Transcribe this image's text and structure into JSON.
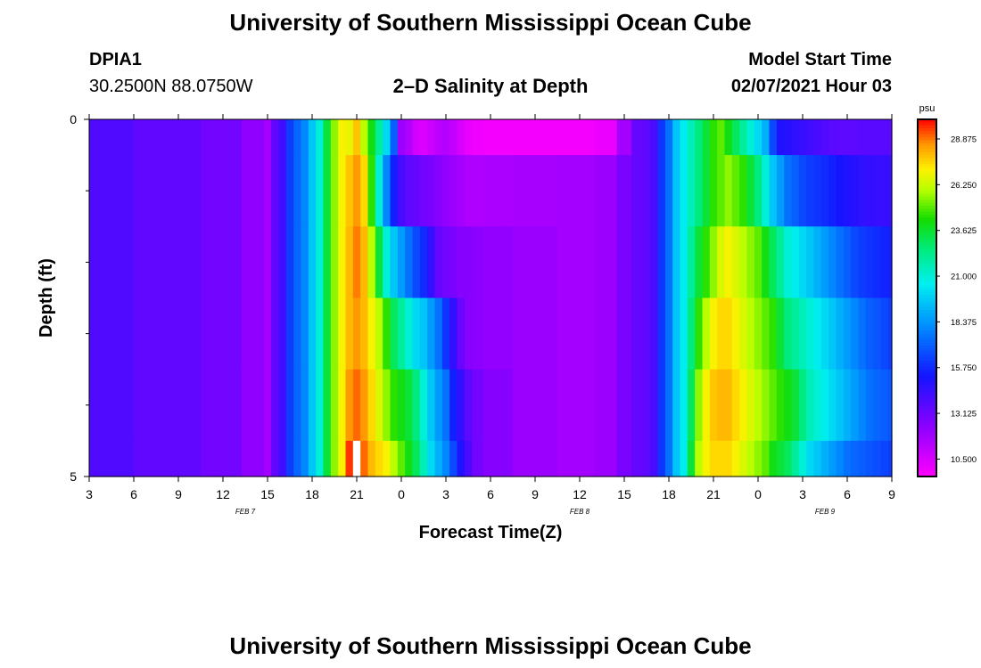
{
  "page": {
    "title_top": "University of Southern Mississippi Ocean Cube",
    "title_bottom": "University of Southern Mississippi Ocean Cube",
    "station_id": "DPIA1",
    "station_coords": "30.2500N 88.0750W",
    "plot_title": "2–D Salinity at Depth",
    "model_start_label": "Model Start Time",
    "model_start_value": "02/07/2021 Hour 03"
  },
  "colors": {
    "scale_low": "#ff00ff",
    "scale_high": "#ff0000",
    "missing_cell": "#ffffff"
  },
  "chart_data": {
    "type": "heatmap",
    "title": "2–D Salinity at Depth",
    "xlabel": "Forecast Time(Z)",
    "ylabel": "Depth (ft)",
    "x_tick_labels": [
      "3",
      "6",
      "9",
      "12",
      "15",
      "18",
      "21",
      "0",
      "3",
      "6",
      "9",
      "12",
      "15",
      "18",
      "21",
      "0",
      "3",
      "6",
      "9"
    ],
    "x_range_hours": [
      3,
      57
    ],
    "y_tick_labels": [
      "0",
      "5"
    ],
    "y_range_ft": [
      0,
      5
    ],
    "y_minor_ticks": [
      1,
      2,
      3,
      4
    ],
    "date_labels": [
      {
        "text": "FEB  7",
        "hour": 13.5
      },
      {
        "text": "FEB  8",
        "hour": 36
      },
      {
        "text": "FEB  9",
        "hour": 52.5
      }
    ],
    "colorbar": {
      "unit": "psu",
      "min": 9.5,
      "max": 30,
      "tick_labels": [
        "28.875",
        "26.250",
        "23.625",
        "21.000",
        "18.375",
        "15.750",
        "13.125",
        "10.500"
      ]
    },
    "depth_bands_ft": [
      [
        0,
        0.5
      ],
      [
        0.5,
        1.5
      ],
      [
        1.5,
        2.5
      ],
      [
        2.5,
        3.5
      ],
      [
        3.5,
        4.5
      ],
      [
        4.5,
        5
      ]
    ],
    "hours": [
      3,
      9,
      12,
      14.5,
      15,
      15.5,
      16,
      16.5,
      17,
      17.5,
      18,
      18.5,
      19,
      19.5,
      20,
      20.5,
      21,
      21.5,
      22,
      22.5,
      23,
      23.5,
      24,
      24.5,
      25,
      25.5,
      26,
      26.5,
      27,
      27.5,
      28,
      28.5,
      29,
      30,
      33,
      36,
      38,
      39,
      40,
      40.5,
      41,
      41.5,
      42,
      42.5,
      43,
      43.5,
      44,
      44.5,
      45,
      45.5,
      46,
      46.5,
      47,
      47.5,
      48,
      48.5,
      49,
      49.5,
      50,
      50.5,
      51,
      51.5,
      52,
      52.5,
      53,
      53.5,
      54,
      54.5,
      55,
      55.5,
      56,
      56.5,
      57
    ],
    "salinity_psu": [
      [
        13.8,
        13.4,
        13.0,
        12.3,
        11.8,
        13.4,
        14.2,
        16.2,
        17.2,
        18.0,
        19.5,
        21.0,
        23.5,
        25.5,
        27.0,
        26.8,
        27.8,
        26.0,
        24.0,
        22.0,
        20.0,
        17.0,
        12.0,
        11.5,
        10.6,
        10.4,
        10.8,
        11.2,
        11.4,
        11.0,
        10.5,
        10.0,
        9.9,
        9.8,
        9.8,
        9.8,
        10.0,
        11.8,
        13.3,
        13.5,
        14.0,
        16.0,
        17.5,
        19.5,
        20.5,
        21.5,
        22.5,
        23.5,
        24.5,
        25.0,
        24.0,
        23.0,
        22.0,
        21.0,
        20.0,
        19.0,
        16.5,
        15.0,
        14.8,
        14.6,
        14.4,
        14.2,
        14.0,
        13.8,
        13.6,
        13.5,
        13.5,
        13.5,
        13.6,
        13.6,
        13.6,
        13.6,
        13.6
      ],
      [
        13.8,
        13.4,
        13.0,
        12.3,
        11.8,
        13.4,
        14.2,
        16.2,
        17.2,
        18.0,
        19.5,
        21.0,
        23.5,
        25.5,
        27.0,
        27.8,
        28.5,
        27.5,
        24.5,
        21.0,
        18.0,
        15.5,
        14.0,
        13.5,
        13.3,
        13.0,
        12.8,
        12.5,
        12.2,
        12.0,
        11.8,
        11.5,
        11.5,
        11.6,
        11.7,
        11.8,
        12.0,
        12.8,
        13.3,
        13.5,
        14.0,
        16.0,
        17.5,
        19.5,
        20.5,
        21.5,
        22.5,
        23.5,
        24.5,
        25.0,
        25.5,
        25.0,
        24.5,
        23.5,
        22.5,
        21.0,
        19.5,
        18.5,
        17.5,
        17.0,
        16.5,
        16.2,
        16.0,
        15.8,
        15.5,
        15.2,
        15.0,
        14.8,
        14.6,
        14.5,
        14.4,
        14.4,
        14.4
      ],
      [
        13.8,
        13.4,
        13.0,
        12.3,
        11.8,
        13.4,
        14.2,
        16.2,
        17.2,
        18.0,
        19.5,
        21.0,
        23.5,
        25.5,
        27.0,
        28.0,
        28.8,
        28.0,
        26.0,
        23.5,
        21.0,
        19.5,
        18.5,
        17.5,
        16.5,
        15.8,
        14.5,
        13.3,
        13.0,
        12.8,
        12.5,
        12.5,
        12.4,
        12.2,
        12.0,
        11.8,
        12.0,
        12.8,
        13.3,
        13.5,
        14.0,
        16.0,
        17.5,
        19.5,
        20.5,
        22.0,
        23.5,
        24.5,
        25.5,
        26.5,
        27.0,
        26.5,
        26.0,
        25.5,
        25.0,
        24.0,
        23.0,
        22.0,
        21.0,
        20.5,
        20.0,
        19.5,
        19.0,
        18.5,
        18.0,
        17.5,
        17.0,
        16.5,
        16.2,
        16.0,
        15.8,
        15.6,
        15.5
      ],
      [
        13.8,
        13.4,
        13.0,
        12.3,
        11.8,
        13.4,
        14.2,
        16.2,
        17.2,
        18.0,
        19.5,
        21.0,
        23.5,
        25.5,
        27.0,
        28.0,
        28.5,
        28.0,
        27.0,
        26.0,
        24.5,
        23.0,
        22.0,
        21.0,
        20.0,
        19.5,
        18.5,
        17.5,
        16.0,
        14.5,
        13.2,
        12.5,
        12.4,
        12.2,
        12.0,
        11.8,
        12.0,
        12.8,
        13.3,
        13.5,
        14.0,
        16.0,
        17.5,
        19.5,
        20.5,
        22.5,
        24.5,
        26.0,
        27.0,
        27.5,
        27.5,
        27.0,
        26.5,
        26.0,
        25.5,
        25.0,
        24.5,
        23.5,
        22.5,
        22.0,
        21.5,
        21.0,
        20.5,
        20.0,
        19.5,
        19.0,
        18.5,
        18.0,
        17.5,
        17.0,
        16.8,
        16.5,
        16.2
      ],
      [
        13.8,
        13.4,
        13.0,
        12.3,
        11.8,
        13.4,
        14.2,
        16.2,
        17.2,
        18.0,
        19.5,
        21.0,
        23.5,
        25.5,
        27.0,
        28.5,
        29.0,
        28.5,
        27.5,
        26.5,
        25.5,
        24.5,
        24.0,
        23.5,
        22.5,
        21.0,
        19.5,
        18.5,
        17.5,
        15.5,
        14.5,
        13.5,
        13.0,
        12.5,
        12.0,
        11.8,
        12.0,
        12.8,
        13.3,
        13.5,
        14.0,
        16.0,
        17.5,
        19.5,
        20.5,
        23.0,
        25.5,
        27.0,
        27.8,
        28.0,
        28.0,
        27.5,
        27.0,
        26.5,
        26.0,
        25.5,
        25.0,
        24.5,
        24.0,
        23.5,
        22.5,
        21.5,
        21.0,
        20.5,
        20.0,
        19.5,
        19.0,
        18.5,
        18.0,
        17.5,
        17.2,
        17.0,
        16.8
      ],
      [
        13.8,
        13.4,
        13.0,
        12.3,
        11.8,
        13.4,
        14.2,
        16.2,
        17.2,
        18.0,
        19.5,
        21.0,
        23.5,
        25.5,
        27.0,
        29.5,
        null,
        29.0,
        28.0,
        27.5,
        27.0,
        26.0,
        25.0,
        24.0,
        23.0,
        21.5,
        20.0,
        19.0,
        18.0,
        16.5,
        15.0,
        14.0,
        13.0,
        12.5,
        12.0,
        11.8,
        12.0,
        12.8,
        13.3,
        13.5,
        14.0,
        16.0,
        17.5,
        19.5,
        20.5,
        23.5,
        26.0,
        27.0,
        27.5,
        27.5,
        27.5,
        27.0,
        26.5,
        26.0,
        25.5,
        25.0,
        24.0,
        23.5,
        23.0,
        22.0,
        21.0,
        20.0,
        19.5,
        19.0,
        18.5,
        18.0,
        17.5,
        17.2,
        17.0,
        16.8,
        16.6,
        16.4,
        16.2
      ]
    ]
  }
}
